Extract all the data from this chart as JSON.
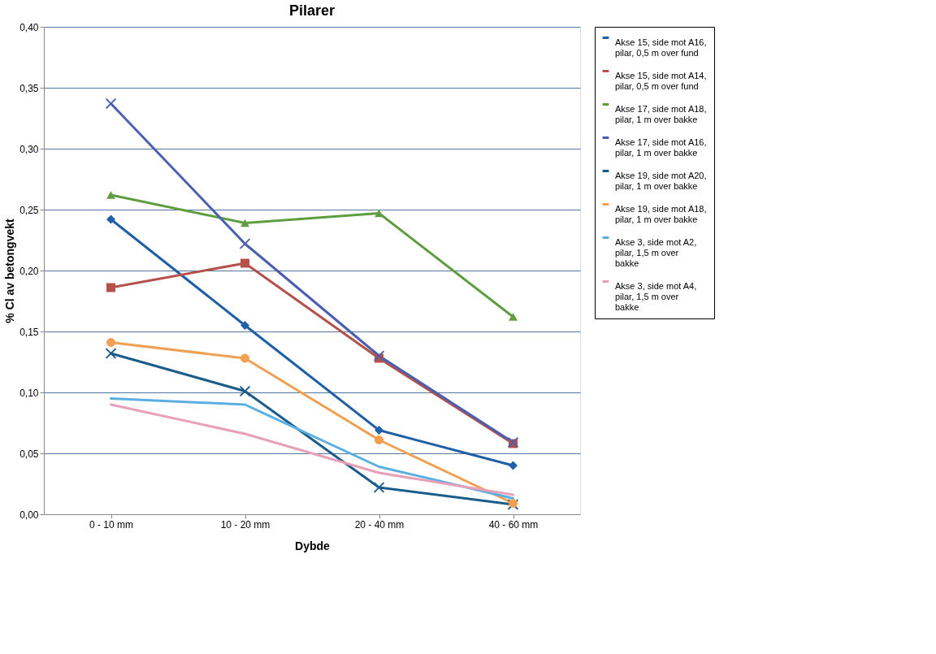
{
  "chart_data": {
    "type": "line",
    "title": "Pilarer",
    "xlabel": "Dybde",
    "ylabel": "% Cl av betongvekt",
    "categories": [
      "0 - 10 mm",
      "10 - 20 mm",
      "20 - 40 mm",
      "40 - 60 mm"
    ],
    "series": [
      {
        "name": "Akse 15, side mot A16, pilar, 0,5 m over fund",
        "color": "#1f5fa8",
        "marker": "diamond",
        "values": [
          0.242,
          0.155,
          0.069,
          0.04
        ]
      },
      {
        "name": "Akse 15, side mot A14, pilar, 0,5 m over fund",
        "color": "#b5504a",
        "marker": "square",
        "values": [
          0.186,
          0.206,
          0.128,
          0.058
        ]
      },
      {
        "name": "Akse 17, side mot A18, pilar, 1 m over bakke",
        "color": "#5f9e40",
        "marker": "triangle",
        "values": [
          0.262,
          0.239,
          0.247,
          0.162
        ]
      },
      {
        "name": "Akse 17, side mot A16, pilar, 1 m over bakke",
        "color": "#4a5fb0",
        "marker": "cross",
        "values": [
          0.337,
          0.222,
          0.13,
          0.059
        ]
      },
      {
        "name": "Akse 19, side mot A20, pilar, 1 m over bakke",
        "color": "#1a5c8a",
        "marker": "cross",
        "values": [
          0.132,
          0.101,
          0.022,
          0.008
        ]
      },
      {
        "name": "Akse 19, side mot A18, pilar, 1 m over bakke",
        "color": "#f0a050",
        "marker": "circle",
        "values": [
          0.141,
          0.128,
          0.061,
          0.009
        ]
      },
      {
        "name": "Akse 3, side mot A2, pilar, 1,5 m over bakke",
        "color": "#5aaee0",
        "marker": "none",
        "values": [
          0.095,
          0.09,
          0.039,
          0.013
        ]
      },
      {
        "name": "Akse 3, side mot A4, pilar, 1,5 m over bakke",
        "color": "#e8a0b8",
        "marker": "none",
        "values": [
          0.09,
          0.066,
          0.034,
          0.016
        ]
      }
    ],
    "ylim": [
      0,
      0.4
    ],
    "yticks": [
      {
        "value": 0,
        "label": "0,00"
      },
      {
        "value": 0.05,
        "label": "0,05"
      },
      {
        "value": 0.1,
        "label": "0,10"
      },
      {
        "value": 0.15,
        "label": "0,15"
      },
      {
        "value": 0.2,
        "label": "0,20"
      },
      {
        "value": 0.25,
        "label": "0,25"
      },
      {
        "value": 0.3,
        "label": "0,30"
      },
      {
        "value": 0.35,
        "label": "0,35"
      },
      {
        "value": 0.4,
        "label": "0,40"
      }
    ],
    "grid": "y",
    "legend": "right"
  }
}
